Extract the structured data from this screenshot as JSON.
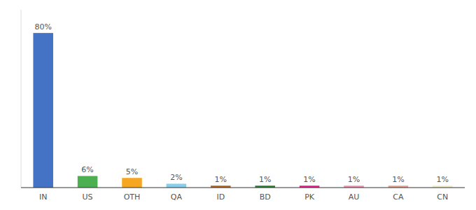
{
  "chart_data": {
    "type": "bar",
    "categories": [
      "IN",
      "US",
      "OTH",
      "QA",
      "ID",
      "BD",
      "PK",
      "AU",
      "CA",
      "CN"
    ],
    "values": [
      80,
      6,
      5,
      2,
      1,
      1,
      1,
      1,
      1,
      1
    ],
    "value_labels": [
      "80%",
      "6%",
      "5%",
      "2%",
      "1%",
      "1%",
      "1%",
      "1%",
      "1%",
      "1%"
    ],
    "colors": [
      "#4472c4",
      "#4caf50",
      "#f5a623",
      "#87ceeb",
      "#b5651d",
      "#2e7d32",
      "#e91e8c",
      "#f48fb1",
      "#e8a090",
      "#f0ecc8"
    ],
    "ylim": [
      0,
      92
    ],
    "data_labels": true,
    "tick_labels": "x",
    "grid": false
  }
}
